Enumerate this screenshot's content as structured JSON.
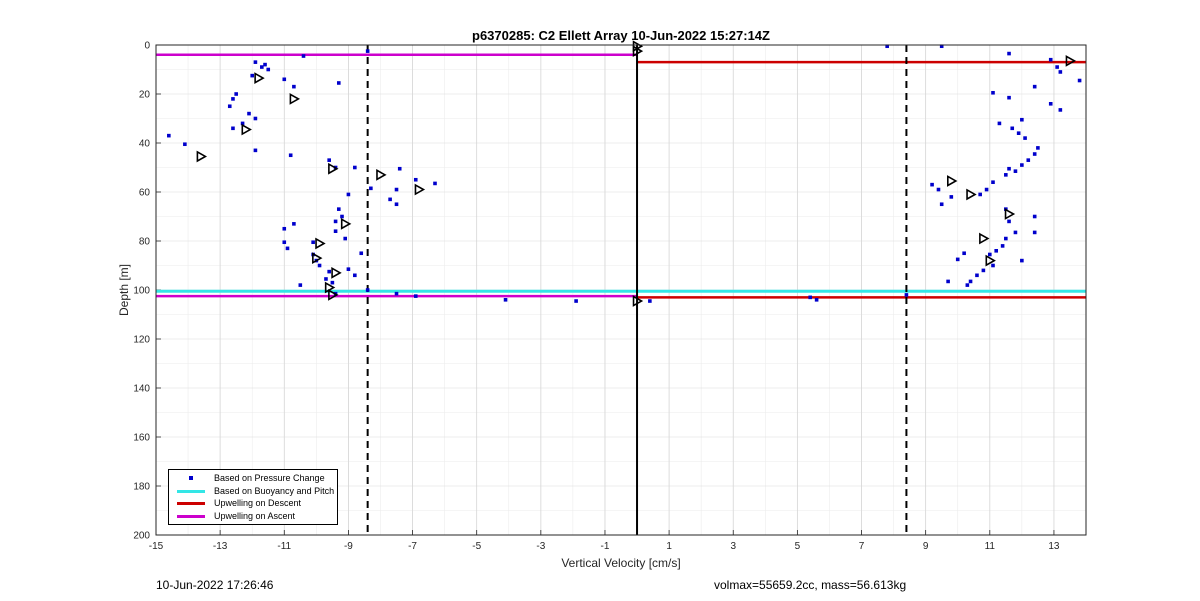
{
  "chart_data": {
    "type": "scatter",
    "title": "p6370285: C2 Ellett Array 10-Jun-2022 15:27:14Z",
    "xlabel": "Vertical Velocity [cm/s]",
    "ylabel": "Depth [m]",
    "xlim": [
      -15,
      14
    ],
    "ylim": [
      0,
      200
    ],
    "y_reversed": true,
    "grid": true,
    "xticks": [
      -15,
      -13,
      -11,
      -9,
      -7,
      -5,
      -3,
      -1,
      1,
      3,
      5,
      7,
      9,
      11,
      13
    ],
    "yticks": [
      0,
      20,
      40,
      60,
      80,
      100,
      120,
      140,
      160,
      180,
      200
    ],
    "legend_position": "bottom-left",
    "legend": [
      {
        "label": "Based on Pressure Change",
        "color": "#0000cc",
        "style": "dot"
      },
      {
        "label": "Based on Buoyancy and Pitch",
        "color": "#33e6e6",
        "style": "line"
      },
      {
        "label": "Upwelling on Descent",
        "color": "#cc0000",
        "style": "line"
      },
      {
        "label": "Upwelling on Ascent",
        "color": "#cc00cc",
        "style": "line"
      }
    ],
    "pressure_points": [
      [
        -14.6,
        37
      ],
      [
        -14.1,
        40.5
      ],
      [
        -11.9,
        7
      ],
      [
        -11.7,
        9
      ],
      [
        -11.6,
        8
      ],
      [
        -12.0,
        12.5
      ],
      [
        -11.5,
        10
      ],
      [
        -12.5,
        20
      ],
      [
        -12.6,
        22
      ],
      [
        -12.7,
        25
      ],
      [
        -12.3,
        32
      ],
      [
        -12.1,
        28
      ],
      [
        -11.9,
        30
      ],
      [
        -12.6,
        34
      ],
      [
        -11.9,
        43
      ],
      [
        -11.0,
        14
      ],
      [
        -10.7,
        17
      ],
      [
        -10.4,
        4.5
      ],
      [
        -9.3,
        15.5
      ],
      [
        -10.8,
        45
      ],
      [
        -9.6,
        47
      ],
      [
        -9.4,
        50
      ],
      [
        -8.8,
        50
      ],
      [
        -9.0,
        61
      ],
      [
        -8.3,
        58.5
      ],
      [
        -7.4,
        50.5
      ],
      [
        -7.5,
        59
      ],
      [
        -7.7,
        63
      ],
      [
        -7.5,
        65
      ],
      [
        -6.9,
        55
      ],
      [
        -6.3,
        56.5
      ],
      [
        -8.4,
        2.5
      ],
      [
        -10.7,
        73
      ],
      [
        -11.0,
        75
      ],
      [
        -11.0,
        80.5
      ],
      [
        -10.9,
        83
      ],
      [
        -9.3,
        67
      ],
      [
        -9.2,
        70
      ],
      [
        -9.4,
        72
      ],
      [
        -9.4,
        76
      ],
      [
        -9.1,
        79
      ],
      [
        -10.1,
        80.5
      ],
      [
        -10.1,
        85.5
      ],
      [
        -10.0,
        88
      ],
      [
        -9.9,
        90
      ],
      [
        -9.6,
        92.5
      ],
      [
        -9.0,
        91.5
      ],
      [
        -8.6,
        85
      ],
      [
        -9.7,
        95.5
      ],
      [
        -9.5,
        97
      ],
      [
        -8.8,
        94
      ],
      [
        -10.5,
        98
      ],
      [
        -9.4,
        101.5
      ],
      [
        -8.4,
        100
      ],
      [
        -7.5,
        101.5
      ],
      [
        -6.9,
        102.5
      ],
      [
        -4.1,
        104
      ],
      [
        -1.9,
        104.5
      ],
      [
        0.4,
        104.5
      ],
      [
        5.4,
        103
      ],
      [
        5.6,
        104
      ],
      [
        7.8,
        0.5
      ],
      [
        9.5,
        0.5
      ],
      [
        11.6,
        3.5
      ],
      [
        12.9,
        6
      ],
      [
        13.1,
        9
      ],
      [
        13.2,
        11
      ],
      [
        13.8,
        14.5
      ],
      [
        11.1,
        19.5
      ],
      [
        11.6,
        21.5
      ],
      [
        12.4,
        17
      ],
      [
        12.9,
        24
      ],
      [
        13.2,
        26.5
      ],
      [
        11.3,
        32
      ],
      [
        11.7,
        34
      ],
      [
        11.9,
        36
      ],
      [
        12.1,
        38
      ],
      [
        12.0,
        30.5
      ],
      [
        12.5,
        42
      ],
      [
        12.4,
        44.5
      ],
      [
        12.2,
        47
      ],
      [
        12.0,
        49
      ],
      [
        11.8,
        51.5
      ],
      [
        11.6,
        50.5
      ],
      [
        11.5,
        53
      ],
      [
        11.1,
        56
      ],
      [
        10.9,
        59
      ],
      [
        10.7,
        61
      ],
      [
        9.2,
        57
      ],
      [
        9.4,
        59
      ],
      [
        9.8,
        62
      ],
      [
        9.5,
        65
      ],
      [
        11.5,
        67
      ],
      [
        11.6,
        72
      ],
      [
        12.4,
        70
      ],
      [
        12.4,
        76.5
      ],
      [
        11.8,
        76.5
      ],
      [
        11.5,
        79
      ],
      [
        11.4,
        82
      ],
      [
        11.2,
        84
      ],
      [
        11.0,
        85.5
      ],
      [
        11.1,
        90
      ],
      [
        12.0,
        88
      ],
      [
        10.8,
        92
      ],
      [
        10.6,
        94
      ],
      [
        10.4,
        96.5
      ],
      [
        10.2,
        85
      ],
      [
        10.0,
        87.5
      ],
      [
        9.7,
        96.5
      ],
      [
        8.4,
        102
      ],
      [
        10.3,
        98
      ]
    ],
    "buoyancy_markers": [
      [
        -11.8,
        13.5
      ],
      [
        -10.7,
        22
      ],
      [
        -12.2,
        34.5
      ],
      [
        -13.6,
        45.5
      ],
      [
        -9.5,
        50.5
      ],
      [
        -8.0,
        53
      ],
      [
        -6.8,
        59
      ],
      [
        -9.1,
        73
      ],
      [
        -9.9,
        81
      ],
      [
        -10.0,
        87
      ],
      [
        -9.4,
        93
      ],
      [
        -9.6,
        99
      ],
      [
        -9.5,
        102
      ],
      [
        0.0,
        0.5
      ],
      [
        0.0,
        2.5
      ],
      [
        0.0,
        104.5
      ],
      [
        13.5,
        6.5
      ],
      [
        9.8,
        55.5
      ],
      [
        10.4,
        61
      ],
      [
        11.6,
        69
      ],
      [
        10.8,
        79
      ],
      [
        11.0,
        88
      ]
    ],
    "upwelling_ascent": [
      {
        "from_x": -15,
        "to_x": 0,
        "y": 4
      },
      {
        "from_x": -15,
        "to_x": 0,
        "y": 102.5
      }
    ],
    "upwelling_descent": [
      {
        "from_x": 0,
        "to_x": 14,
        "y": 7
      },
      {
        "from_x": 0,
        "to_x": 14,
        "y": 103
      }
    ],
    "buoyancy_line": {
      "from_x": -15,
      "to_x": 14,
      "y": 100.5
    },
    "vertical_lines": [
      {
        "x": 0,
        "style": "solid"
      },
      {
        "x": -8.4,
        "style": "dashed"
      },
      {
        "x": 8.4,
        "style": "dashed"
      }
    ]
  },
  "footer": {
    "left": "10-Jun-2022 17:26:46",
    "right": "volmax=55659.2cc, mass=56.613kg"
  }
}
